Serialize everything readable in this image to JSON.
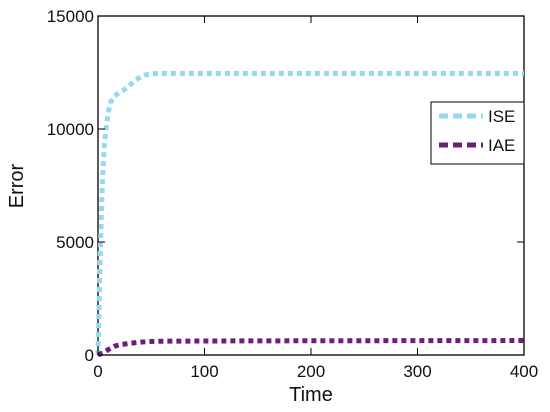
{
  "chart_data": {
    "type": "line",
    "title": "",
    "xlabel": "Time",
    "ylabel": "Error",
    "xlim": [
      0,
      400
    ],
    "ylim": [
      0,
      15000
    ],
    "x_ticks": [
      0,
      100,
      200,
      300,
      400
    ],
    "x_tick_labels": [
      "0",
      "100",
      "200",
      "300",
      "400"
    ],
    "y_ticks": [
      0,
      5000,
      10000,
      15000
    ],
    "y_tick_labels": [
      "0",
      "5000",
      "10000",
      "15000"
    ],
    "grid": false,
    "legend": {
      "position": "right"
    },
    "series": [
      {
        "name": "ISE",
        "color": "#96d9ef",
        "line_style": "dotted",
        "points": [
          [
            0,
            0
          ],
          [
            1,
            2200
          ],
          [
            2,
            4200
          ],
          [
            3,
            6000
          ],
          [
            4,
            7400
          ],
          [
            5,
            8500
          ],
          [
            6,
            9300
          ],
          [
            8,
            10200
          ],
          [
            10,
            10800
          ],
          [
            12,
            11200
          ],
          [
            15,
            11450
          ],
          [
            20,
            11600
          ],
          [
            25,
            11750
          ],
          [
            30,
            11950
          ],
          [
            35,
            12150
          ],
          [
            40,
            12300
          ],
          [
            45,
            12400
          ],
          [
            50,
            12450
          ],
          [
            60,
            12460
          ],
          [
            100,
            12460
          ],
          [
            200,
            12460
          ],
          [
            300,
            12460
          ],
          [
            400,
            12460
          ]
        ]
      },
      {
        "name": "IAE",
        "color": "#6b1f78",
        "line_style": "dotted",
        "points": [
          [
            0,
            0
          ],
          [
            5,
            100
          ],
          [
            10,
            250
          ],
          [
            15,
            380
          ],
          [
            20,
            450
          ],
          [
            30,
            520
          ],
          [
            40,
            570
          ],
          [
            50,
            600
          ],
          [
            60,
            610
          ],
          [
            80,
            615
          ],
          [
            100,
            620
          ],
          [
            200,
            630
          ],
          [
            300,
            635
          ],
          [
            400,
            640
          ]
        ]
      }
    ]
  }
}
